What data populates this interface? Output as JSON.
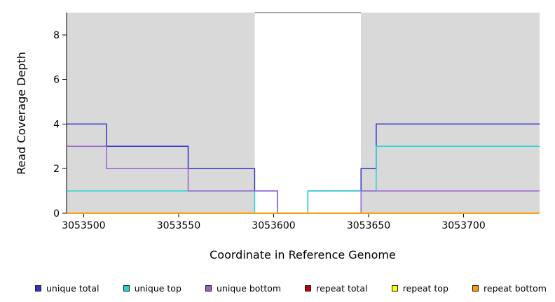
{
  "figure": {
    "background": "#ffffff",
    "shaded_region_color": "#d9d9d9",
    "gap_border_color": "#4d4d4d",
    "axis_color": "#000000"
  },
  "chart_data": {
    "type": "line",
    "step": true,
    "title": "",
    "xlabel": "Coordinate in Reference Genome",
    "ylabel": "Read Coverage Depth",
    "xlim": [
      3053491,
      3053740
    ],
    "ylim": [
      0,
      9
    ],
    "xticks": [
      3053500,
      3053550,
      3053600,
      3053650,
      3053700
    ],
    "yticks": [
      0,
      2,
      4,
      6,
      8
    ],
    "grid": false,
    "legend_position": "bottom",
    "shaded_regions": [
      {
        "x0": 3053491,
        "x1": 3053590
      },
      {
        "x0": 3053646,
        "x1": 3053740
      }
    ],
    "series": [
      {
        "name": "unique total",
        "color": "#3333cc",
        "points": [
          [
            3053491,
            4
          ],
          [
            3053512,
            4
          ],
          [
            3053512,
            3
          ],
          [
            3053555,
            3
          ],
          [
            3053555,
            2
          ],
          [
            3053590,
            2
          ],
          [
            3053590,
            1
          ],
          [
            3053602,
            1
          ],
          [
            3053602,
            0
          ],
          [
            3053618,
            0
          ],
          [
            3053618,
            1
          ],
          [
            3053646,
            1
          ],
          [
            3053646,
            2
          ],
          [
            3053654,
            2
          ],
          [
            3053654,
            4
          ],
          [
            3053740,
            4
          ]
        ]
      },
      {
        "name": "unique top",
        "color": "#22d4d4",
        "points": [
          [
            3053491,
            1
          ],
          [
            3053590,
            1
          ],
          [
            3053590,
            0
          ],
          [
            3053618,
            0
          ],
          [
            3053618,
            1
          ],
          [
            3053654,
            1
          ],
          [
            3053654,
            3
          ],
          [
            3053740,
            3
          ]
        ]
      },
      {
        "name": "unique bottom",
        "color": "#9a5fd2",
        "points": [
          [
            3053491,
            3
          ],
          [
            3053512,
            3
          ],
          [
            3053512,
            2
          ],
          [
            3053555,
            2
          ],
          [
            3053555,
            1
          ],
          [
            3053602,
            1
          ],
          [
            3053602,
            0
          ],
          [
            3053646,
            0
          ],
          [
            3053646,
            1
          ],
          [
            3053740,
            1
          ]
        ]
      },
      {
        "name": "repeat total",
        "color": "#c00000",
        "points": [
          [
            3053491,
            0
          ],
          [
            3053740,
            0
          ]
        ]
      },
      {
        "name": "repeat top",
        "color": "#ffff00",
        "points": [
          [
            3053491,
            0
          ],
          [
            3053740,
            0
          ]
        ]
      },
      {
        "name": "repeat bottom",
        "color": "#ff9900",
        "points": [
          [
            3053491,
            0
          ],
          [
            3053740,
            0
          ]
        ]
      }
    ]
  }
}
